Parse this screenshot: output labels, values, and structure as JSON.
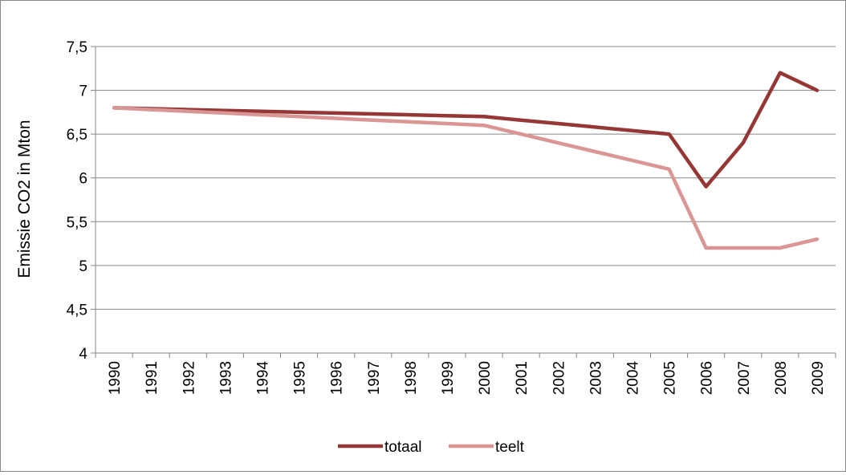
{
  "chart_data": {
    "type": "line",
    "title": "",
    "xlabel": "",
    "ylabel": "Emissie CO2 in Mton",
    "x": [
      "1990",
      "1991",
      "1992",
      "1993",
      "1994",
      "1995",
      "1996",
      "1997",
      "1998",
      "1999",
      "2000",
      "2001",
      "2002",
      "2003",
      "2004",
      "2005",
      "2006",
      "2007",
      "2008",
      "2009"
    ],
    "y_ticks": [
      "4",
      "4,5",
      "5",
      "5,5",
      "6",
      "6,5",
      "7",
      "7,5"
    ],
    "ylim": [
      4,
      7.5
    ],
    "grid": "horizontal",
    "legend_position": "bottom",
    "series": [
      {
        "name": "totaal",
        "color": "#953735",
        "values": [
          6.8,
          6.79,
          6.78,
          6.77,
          6.76,
          6.75,
          6.74,
          6.73,
          6.72,
          6.71,
          6.7,
          6.66,
          6.62,
          6.58,
          6.54,
          6.5,
          5.9,
          6.4,
          7.2,
          7.0
        ]
      },
      {
        "name": "teelt",
        "color": "#d99694",
        "values": [
          6.8,
          6.78,
          6.76,
          6.74,
          6.72,
          6.7,
          6.68,
          6.66,
          6.64,
          6.62,
          6.6,
          6.5,
          6.4,
          6.3,
          6.2,
          6.1,
          5.2,
          5.2,
          5.2,
          5.3
        ]
      }
    ]
  }
}
